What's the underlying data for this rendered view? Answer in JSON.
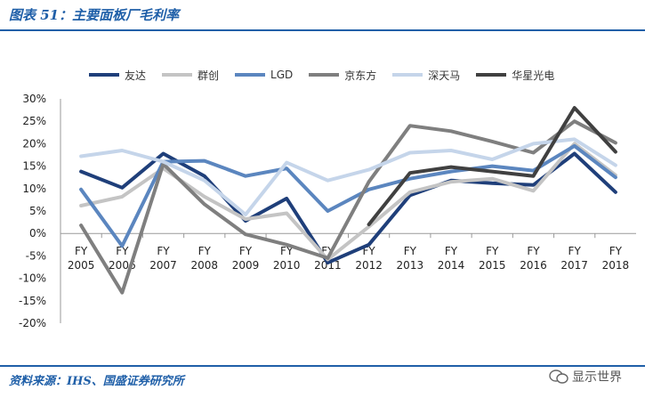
{
  "header": {
    "title": "图表 51：主要面板厂毛利率"
  },
  "footer": {
    "source": "资料来源：IHS、国盛证券研究所",
    "watermark": "显示世界"
  },
  "chart_data": {
    "type": "line",
    "categories": [
      [
        "FY",
        "2005"
      ],
      [
        "FY",
        "2006"
      ],
      [
        "FY",
        "2007"
      ],
      [
        "FY",
        "2008"
      ],
      [
        "FY",
        "2009"
      ],
      [
        "FY",
        "2010"
      ],
      [
        "FY",
        "2011"
      ],
      [
        "FY",
        "2012"
      ],
      [
        "FY",
        "2013"
      ],
      [
        "FY",
        "2014"
      ],
      [
        "FY",
        "2015"
      ],
      [
        "FY",
        "2016"
      ],
      [
        "FY",
        "2017"
      ],
      [
        "FY",
        "2018"
      ]
    ],
    "ylim": [
      -20,
      30
    ],
    "yticks": [
      "-20%",
      "-15%",
      "-10%",
      "-5%",
      "0%",
      "5%",
      "10%",
      "15%",
      "20%",
      "25%",
      "30%"
    ],
    "ytick_values": [
      -20,
      -15,
      -10,
      -5,
      0,
      5,
      10,
      15,
      20,
      25,
      30
    ],
    "legend_position": "top",
    "series": [
      {
        "name": "友达",
        "color": "#1f3f7a",
        "values": [
          13.8,
          10.2,
          17.8,
          12.8,
          2.8,
          7.8,
          -6.5,
          -2.5,
          8.5,
          11.8,
          11.2,
          10.8,
          17.8,
          9.2
        ]
      },
      {
        "name": "群创",
        "color": "#c4c4c4",
        "values": [
          6.2,
          8.2,
          14.5,
          8.2,
          3.2,
          4.5,
          -5.8,
          1.5,
          9.2,
          11.5,
          12.2,
          9.5,
          20.0,
          13.0
        ]
      },
      {
        "name": "LGD",
        "color": "#5b86bf",
        "values": [
          9.8,
          -2.8,
          16.0,
          16.2,
          12.8,
          14.5,
          5.0,
          9.8,
          12.2,
          13.8,
          15.0,
          14.0,
          19.5,
          12.5
        ]
      },
      {
        "name": "京东方",
        "color": "#7f7f7f",
        "values": [
          1.8,
          -13.2,
          15.5,
          6.5,
          -0.2,
          -2.5,
          -5.5,
          11.5,
          24.0,
          22.8,
          20.5,
          18.0,
          25.0,
          20.2
        ]
      },
      {
        "name": "深天马",
        "color": "#c5d5ea",
        "values": [
          17.2,
          18.5,
          16.0,
          11.8,
          4.2,
          15.8,
          11.8,
          14.2,
          18.0,
          18.5,
          16.5,
          20.0,
          21.0,
          15.2
        ]
      },
      {
        "name": "华星光电",
        "color": "#404040",
        "values": [
          null,
          null,
          null,
          null,
          null,
          null,
          null,
          2.0,
          13.5,
          14.8,
          13.8,
          12.8,
          28.0,
          18.2
        ]
      }
    ]
  }
}
